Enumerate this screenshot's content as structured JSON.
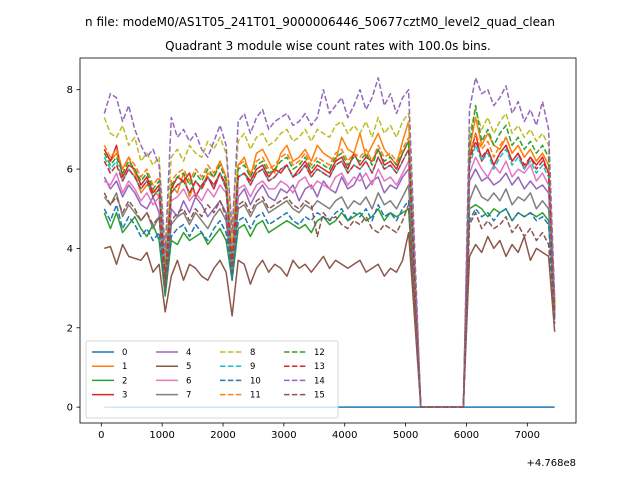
{
  "figure": {
    "suptitle": "n file: modeM0/AS1T05_241T01_9000006446_50677cztM0_level2_quad_clean",
    "title": "Quadrant 3 module wise count rates with 100.0s bins.",
    "offset_text": "+4.768e8"
  },
  "chart_data": {
    "type": "line",
    "title": "Quadrant 3 module wise count rates with 100.0s bins.",
    "xlabel": "",
    "ylabel": "",
    "x_offset": 476800000,
    "xlim": [
      -350,
      7800
    ],
    "ylim": [
      -0.4,
      8.8
    ],
    "xticks": [
      0,
      1000,
      2000,
      3000,
      4000,
      5000,
      6000,
      7000
    ],
    "yticks": [
      0,
      2,
      4,
      6,
      8
    ],
    "grid": false,
    "legend": {
      "location": "lower-left",
      "columns": 4
    },
    "x": [
      50,
      150,
      250,
      350,
      450,
      550,
      650,
      750,
      850,
      950,
      1050,
      1150,
      1250,
      1350,
      1450,
      1550,
      1650,
      1750,
      1850,
      1950,
      2050,
      2150,
      2250,
      2350,
      2450,
      2550,
      2650,
      2750,
      2850,
      2950,
      3050,
      3150,
      3250,
      3350,
      3450,
      3550,
      3650,
      3750,
      3850,
      3950,
      4050,
      4150,
      4250,
      4350,
      4450,
      4550,
      4650,
      4750,
      4850,
      4950,
      5050,
      5250,
      5950,
      6050,
      6150,
      6250,
      6350,
      6450,
      6550,
      6650,
      6750,
      6850,
      6950,
      7050,
      7150,
      7250,
      7350,
      7450
    ],
    "series": [
      {
        "name": "0",
        "color": "#1f77b4",
        "dash": "solid",
        "values": [
          0,
          0,
          0,
          0,
          0,
          0,
          0,
          0,
          0,
          0,
          0,
          0,
          0,
          0,
          0,
          0,
          0,
          0,
          0,
          0,
          0,
          0,
          0,
          0,
          0,
          0,
          0,
          0,
          0,
          0,
          0,
          0,
          0,
          0,
          0,
          0,
          0,
          0,
          0,
          0,
          0,
          0,
          0,
          0,
          0,
          0,
          0,
          0,
          0,
          0,
          0,
          0,
          0,
          0,
          0,
          0,
          0,
          0,
          0,
          0,
          0,
          0,
          0,
          0,
          0,
          0,
          0,
          0
        ]
      },
      {
        "name": "1",
        "color": "#ff7f0e",
        "dash": "solid",
        "values": [
          6.5,
          6.2,
          6.4,
          6.0,
          6.3,
          5.9,
          5.4,
          5.6,
          5.5,
          5.3,
          3.6,
          5.6,
          5.4,
          5.9,
          5.3,
          5.7,
          5.5,
          5.9,
          5.8,
          6.2,
          5.8,
          4.0,
          6.1,
          6.3,
          5.8,
          6.4,
          6.5,
          6.2,
          5.9,
          6.4,
          6.6,
          6.2,
          6.3,
          6.5,
          6.2,
          6.6,
          6.4,
          6.3,
          6.2,
          6.8,
          6.5,
          6.4,
          6.9,
          6.3,
          6.6,
          6.9,
          6.5,
          6.3,
          6.1,
          6.7,
          7.2,
          0,
          0,
          6.5,
          7.3,
          6.6,
          6.9,
          6.6,
          6.5,
          6.8,
          6.4,
          6.6,
          6.3,
          6.5,
          6.2,
          6.4,
          6.1,
          2.6
        ]
      },
      {
        "name": "2",
        "color": "#2ca02c",
        "dash": "solid",
        "values": [
          4.9,
          4.5,
          4.9,
          4.4,
          4.6,
          4.8,
          4.5,
          4.3,
          4.6,
          4.2,
          2.8,
          4.2,
          4.1,
          4.4,
          4.2,
          4.3,
          4.4,
          4.1,
          4.3,
          4.5,
          4.2,
          3.2,
          4.5,
          4.6,
          4.3,
          4.6,
          4.7,
          4.4,
          4.5,
          4.6,
          4.7,
          4.6,
          4.5,
          4.6,
          4.4,
          4.7,
          4.8,
          4.6,
          4.7,
          4.9,
          4.7,
          4.8,
          4.9,
          4.7,
          4.8,
          5.0,
          4.7,
          4.9,
          4.8,
          4.9,
          5.0,
          0,
          0,
          5.0,
          5.1,
          5.0,
          4.8,
          5.0,
          4.9,
          5.0,
          4.7,
          4.9,
          4.8,
          4.9,
          4.8,
          4.9,
          4.7,
          2.3
        ]
      },
      {
        "name": "3",
        "color": "#d62728",
        "dash": "solid",
        "values": [
          6.5,
          6.2,
          6.6,
          5.8,
          6.1,
          6.0,
          5.6,
          5.8,
          5.4,
          5.6,
          3.1,
          5.5,
          5.8,
          5.7,
          5.9,
          5.3,
          5.6,
          5.8,
          5.5,
          5.9,
          5.6,
          3.6,
          5.8,
          5.9,
          5.7,
          6.0,
          6.1,
          5.8,
          6.0,
          5.9,
          6.1,
          5.8,
          6.0,
          6.2,
          5.9,
          6.1,
          6.0,
          5.9,
          6.2,
          6.3,
          6.0,
          6.4,
          6.1,
          6.3,
          6.2,
          6.5,
          6.1,
          6.2,
          6.0,
          6.4,
          6.7,
          0,
          0,
          6.3,
          6.9,
          6.2,
          6.5,
          6.1,
          6.4,
          6.6,
          6.2,
          6.4,
          6.0,
          6.3,
          6.1,
          6.3,
          5.9,
          2.5
        ]
      },
      {
        "name": "4",
        "color": "#9467bd",
        "dash": "solid",
        "values": [
          5.8,
          5.5,
          5.7,
          5.3,
          5.6,
          5.4,
          5.1,
          5.0,
          5.3,
          4.9,
          3.2,
          5.0,
          4.8,
          5.2,
          4.9,
          5.3,
          5.1,
          4.8,
          5.0,
          5.2,
          4.9,
          3.7,
          5.3,
          5.5,
          5.1,
          5.4,
          5.6,
          5.3,
          5.2,
          5.5,
          5.4,
          5.6,
          5.2,
          5.5,
          5.6,
          5.3,
          5.7,
          5.5,
          5.4,
          5.8,
          5.5,
          5.6,
          5.9,
          5.5,
          5.7,
          5.8,
          5.4,
          5.6,
          5.5,
          5.8,
          6.0,
          0,
          0,
          5.7,
          6.0,
          5.7,
          5.8,
          5.6,
          5.7,
          5.9,
          5.6,
          5.8,
          5.5,
          5.7,
          5.5,
          5.6,
          5.4,
          2.3
        ]
      },
      {
        "name": "5",
        "color": "#8c564b",
        "dash": "solid",
        "values": [
          4.0,
          4.05,
          3.6,
          4.1,
          3.8,
          3.75,
          3.7,
          3.9,
          3.4,
          3.6,
          2.4,
          3.3,
          3.7,
          3.2,
          3.6,
          3.5,
          3.3,
          3.2,
          3.5,
          3.7,
          3.4,
          2.3,
          3.7,
          3.6,
          3.1,
          3.5,
          3.7,
          3.4,
          3.6,
          3.5,
          3.3,
          3.7,
          3.5,
          3.6,
          3.4,
          3.6,
          3.8,
          3.5,
          3.7,
          3.6,
          3.5,
          3.6,
          3.7,
          3.4,
          3.5,
          3.6,
          3.3,
          3.5,
          3.4,
          3.7,
          4.4,
          0,
          0,
          3.8,
          4.1,
          3.9,
          4.3,
          4.0,
          4.2,
          3.8,
          4.1,
          3.9,
          4.3,
          3.7,
          4.0,
          3.9,
          3.8,
          1.9
        ]
      },
      {
        "name": "6",
        "color": "#e377c2",
        "dash": "solid",
        "values": [
          5.7,
          5.6,
          5.9,
          5.4,
          5.7,
          5.5,
          5.2,
          5.4,
          5.1,
          5.3,
          3.4,
          5.2,
          5.3,
          5.5,
          5.2,
          5.4,
          5.2,
          5.5,
          5.3,
          5.6,
          5.4,
          3.9,
          5.5,
          5.6,
          5.3,
          5.6,
          5.7,
          5.5,
          5.5,
          5.7,
          5.6,
          5.4,
          5.7,
          5.8,
          5.5,
          5.7,
          5.6,
          5.5,
          5.8,
          5.9,
          5.6,
          5.8,
          5.7,
          5.9,
          5.6,
          6.0,
          5.7,
          5.8,
          5.6,
          5.9,
          6.2,
          0,
          0,
          5.9,
          6.3,
          6.0,
          5.8,
          6.1,
          5.9,
          6.2,
          5.8,
          6.0,
          5.9,
          6.1,
          5.7,
          5.9,
          5.6,
          2.4
        ]
      },
      {
        "name": "7",
        "color": "#7f7f7f",
        "dash": "solid",
        "values": [
          5.3,
          5.1,
          5.4,
          4.8,
          5.1,
          4.9,
          4.7,
          4.9,
          4.5,
          4.8,
          3.0,
          4.6,
          4.8,
          4.9,
          4.6,
          4.9,
          4.7,
          4.5,
          4.8,
          5.0,
          4.7,
          3.4,
          5.0,
          5.1,
          4.8,
          5.1,
          5.2,
          4.9,
          5.0,
          5.1,
          5.2,
          5.0,
          4.9,
          5.1,
          5.0,
          5.2,
          5.1,
          5.0,
          5.2,
          5.3,
          5.0,
          5.2,
          5.1,
          5.3,
          5.0,
          5.4,
          5.1,
          5.2,
          5.0,
          5.3,
          5.6,
          0,
          0,
          5.2,
          5.6,
          5.3,
          5.2,
          5.4,
          5.2,
          5.5,
          5.1,
          5.3,
          5.2,
          5.4,
          5.0,
          5.2,
          5.0,
          2.2
        ]
      },
      {
        "name": "8",
        "color": "#bcbd22",
        "dash": "dashed",
        "values": [
          7.3,
          6.9,
          6.8,
          7.1,
          6.6,
          6.8,
          6.2,
          6.4,
          6.1,
          6.3,
          4.0,
          6.3,
          6.5,
          6.2,
          6.6,
          6.4,
          6.3,
          6.7,
          6.5,
          6.8,
          6.4,
          4.6,
          6.7,
          6.9,
          6.5,
          6.8,
          6.9,
          6.6,
          6.7,
          6.9,
          7.0,
          6.7,
          6.8,
          7.0,
          6.7,
          7.0,
          6.9,
          6.8,
          7.1,
          7.2,
          6.9,
          7.1,
          6.9,
          7.2,
          6.8,
          7.3,
          6.9,
          7.1,
          6.8,
          7.2,
          7.4,
          0,
          0,
          6.9,
          7.5,
          7.0,
          7.3,
          6.9,
          7.2,
          7.4,
          6.9,
          7.1,
          6.8,
          7.0,
          6.7,
          6.9,
          6.6,
          2.6
        ]
      },
      {
        "name": "9",
        "color": "#17becf",
        "dash": "dashed",
        "values": [
          6.3,
          6.0,
          6.2,
          5.7,
          6.0,
          5.8,
          5.5,
          5.7,
          5.3,
          5.5,
          3.4,
          5.4,
          5.6,
          5.7,
          5.4,
          5.7,
          5.5,
          5.8,
          5.6,
          5.9,
          5.5,
          3.5,
          5.8,
          5.9,
          5.6,
          5.9,
          6.0,
          5.7,
          5.8,
          6.0,
          6.1,
          5.8,
          5.9,
          6.1,
          5.8,
          6.0,
          5.9,
          5.8,
          6.1,
          6.2,
          5.9,
          6.1,
          6.0,
          6.2,
          5.9,
          6.3,
          6.0,
          6.1,
          5.9,
          6.2,
          6.5,
          0,
          0,
          6.1,
          6.6,
          6.2,
          6.4,
          6.0,
          6.3,
          6.5,
          6.1,
          6.3,
          6.0,
          6.2,
          5.9,
          6.1,
          5.8,
          2.5
        ]
      },
      {
        "name": "10",
        "color": "#1f77b4",
        "dash": "dashed",
        "values": [
          5.0,
          4.7,
          5.1,
          4.5,
          4.8,
          4.6,
          4.3,
          4.5,
          4.2,
          4.4,
          2.9,
          4.3,
          4.5,
          4.6,
          4.3,
          4.6,
          4.4,
          4.2,
          4.5,
          4.7,
          4.4,
          3.2,
          4.7,
          4.8,
          4.5,
          4.8,
          4.9,
          4.6,
          4.7,
          4.8,
          4.9,
          4.7,
          4.6,
          4.8,
          4.7,
          4.9,
          4.8,
          4.7,
          4.9,
          5.0,
          4.7,
          4.9,
          4.8,
          5.0,
          4.7,
          5.1,
          4.8,
          4.9,
          4.7,
          5.0,
          5.2,
          0,
          0,
          4.7,
          5.0,
          4.8,
          4.9,
          4.7,
          4.9,
          5.0,
          4.7,
          4.9,
          4.8,
          4.9,
          4.7,
          4.8,
          4.6,
          2.2
        ]
      },
      {
        "name": "11",
        "color": "#ff7f0e",
        "dash": "dashed",
        "values": [
          6.6,
          6.3,
          6.5,
          6.0,
          6.3,
          6.1,
          5.8,
          6.0,
          5.6,
          5.8,
          3.5,
          5.7,
          5.9,
          6.0,
          5.7,
          6.0,
          5.8,
          6.1,
          5.9,
          6.2,
          5.8,
          3.9,
          6.1,
          6.2,
          5.9,
          6.2,
          6.3,
          6.0,
          6.1,
          6.3,
          6.4,
          6.1,
          6.2,
          6.4,
          6.1,
          6.3,
          6.2,
          6.1,
          6.4,
          6.5,
          6.2,
          6.4,
          6.3,
          6.5,
          6.2,
          6.6,
          6.3,
          6.4,
          6.2,
          6.5,
          6.8,
          0,
          0,
          6.4,
          6.9,
          6.5,
          6.7,
          6.3,
          6.6,
          6.8,
          6.4,
          6.6,
          6.3,
          6.5,
          6.2,
          6.4,
          6.1,
          2.6
        ]
      },
      {
        "name": "12",
        "color": "#2ca02c",
        "dash": "dashed",
        "values": [
          6.4,
          6.1,
          6.3,
          5.9,
          6.2,
          6.0,
          5.7,
          5.9,
          5.5,
          5.7,
          3.3,
          5.6,
          5.8,
          5.9,
          5.6,
          5.9,
          5.7,
          6.0,
          5.8,
          6.1,
          5.7,
          3.7,
          6.0,
          6.1,
          5.8,
          6.1,
          6.2,
          5.9,
          6.0,
          6.2,
          6.3,
          6.0,
          6.1,
          6.3,
          6.0,
          6.2,
          6.1,
          6.0,
          6.3,
          6.4,
          6.1,
          6.3,
          6.2,
          6.4,
          6.1,
          6.5,
          6.2,
          6.3,
          6.1,
          6.4,
          6.7,
          0,
          0,
          6.6,
          7.6,
          6.7,
          7.0,
          6.6,
          6.9,
          7.1,
          6.6,
          6.8,
          6.5,
          6.7,
          6.4,
          6.6,
          6.3,
          2.5
        ]
      },
      {
        "name": "13",
        "color": "#d62728",
        "dash": "dashed",
        "values": [
          6.2,
          5.9,
          6.1,
          5.7,
          6.0,
          5.8,
          5.5,
          5.7,
          5.3,
          5.5,
          3.2,
          5.4,
          5.6,
          5.7,
          5.4,
          5.7,
          5.5,
          5.8,
          5.6,
          5.9,
          5.5,
          3.6,
          5.8,
          5.9,
          5.6,
          5.9,
          6.0,
          5.7,
          5.8,
          6.0,
          6.1,
          5.8,
          5.9,
          6.1,
          5.8,
          6.0,
          5.9,
          5.8,
          6.1,
          6.2,
          5.9,
          6.1,
          6.0,
          6.2,
          5.9,
          6.3,
          6.0,
          6.1,
          5.9,
          6.2,
          6.5,
          0,
          0,
          6.2,
          6.7,
          6.3,
          6.5,
          6.1,
          6.4,
          6.6,
          6.2,
          6.4,
          6.1,
          6.3,
          6.0,
          6.2,
          5.9,
          2.4
        ]
      },
      {
        "name": "14",
        "color": "#9467bd",
        "dash": "dashed",
        "values": [
          7.4,
          7.9,
          7.8,
          7.2,
          7.6,
          7.0,
          6.6,
          6.3,
          6.5,
          6.1,
          3.9,
          7.3,
          6.8,
          7.0,
          6.7,
          6.9,
          6.5,
          6.3,
          6.7,
          7.1,
          6.6,
          4.4,
          7.2,
          7.4,
          6.9,
          7.3,
          7.5,
          7.0,
          7.2,
          7.3,
          7.4,
          7.1,
          7.2,
          7.4,
          7.1,
          7.3,
          8.0,
          7.4,
          7.6,
          7.8,
          7.3,
          7.6,
          8.0,
          7.5,
          7.8,
          8.3,
          7.6,
          7.9,
          7.4,
          7.8,
          8.0,
          0,
          0,
          7.5,
          8.3,
          7.9,
          8.0,
          7.6,
          7.8,
          8.1,
          7.4,
          7.7,
          7.2,
          7.5,
          7.1,
          7.7,
          7.0,
          2.7
        ]
      },
      {
        "name": "15",
        "color": "#8c564b",
        "dash": "dashed",
        "values": [
          5.4,
          5.1,
          5.3,
          4.9,
          5.2,
          5.0,
          4.7,
          4.9,
          4.6,
          4.8,
          3.0,
          4.7,
          4.9,
          5.0,
          4.7,
          5.0,
          4.8,
          5.1,
          4.9,
          5.2,
          4.8,
          3.4,
          5.1,
          5.2,
          4.9,
          5.2,
          5.3,
          5.0,
          5.1,
          5.2,
          5.3,
          5.1,
          5.0,
          5.2,
          5.1,
          4.3,
          4.9,
          4.7,
          4.8,
          4.6,
          4.5,
          4.7,
          4.6,
          4.8,
          4.5,
          4.4,
          4.6,
          4.5,
          4.4,
          4.7,
          5.1,
          0,
          0,
          4.6,
          4.9,
          4.5,
          4.7,
          4.5,
          4.6,
          4.8,
          4.4,
          4.6,
          4.3,
          4.5,
          4.2,
          4.4,
          4.1,
          2.1
        ]
      }
    ]
  }
}
